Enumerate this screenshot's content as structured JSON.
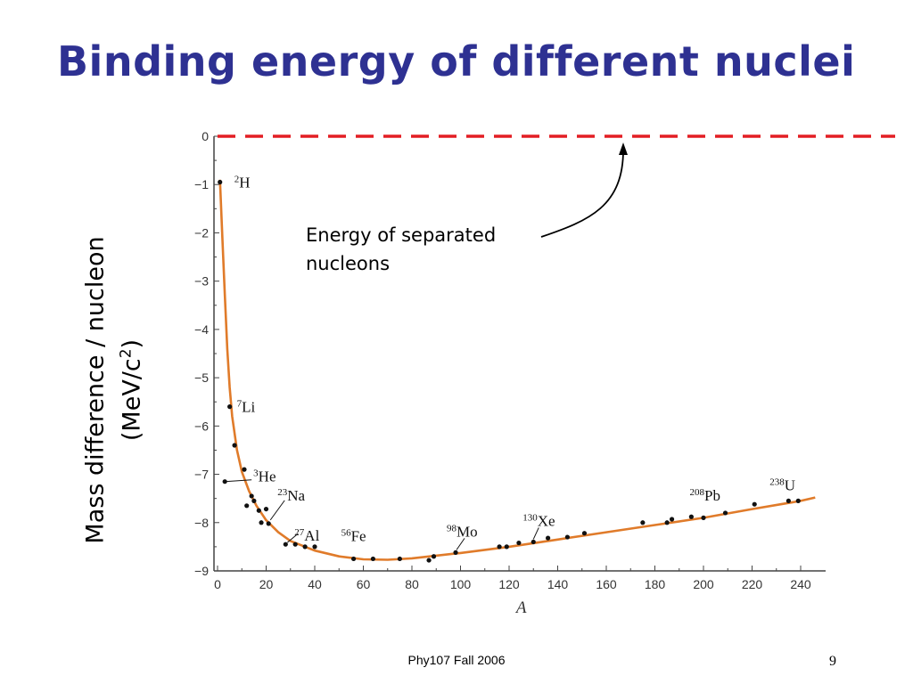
{
  "slide": {
    "title": "Binding energy of different nuclei",
    "ylabel_line1": "Mass difference / nucleon",
    "ylabel_line2_pre": "(MeV/c",
    "ylabel_line2_sup": "2",
    "ylabel_line2_post": ")",
    "footer": "Phy107 Fall 2006",
    "page_number": "9"
  },
  "chart_data": {
    "type": "scatter",
    "xlabel": "A",
    "xlim": [
      0,
      250
    ],
    "ylim": [
      -9,
      0
    ],
    "xticks": [
      0,
      20,
      40,
      60,
      80,
      100,
      120,
      140,
      160,
      180,
      200,
      220,
      240
    ],
    "yticks": [
      0,
      -1,
      -2,
      -3,
      -4,
      -5,
      -6,
      -7,
      -8,
      -9
    ],
    "xtick_labels": [
      "0",
      "20",
      "40",
      "60",
      "80",
      "100",
      "120",
      "140",
      "160",
      "180",
      "200",
      "220",
      "240"
    ],
    "ytick_labels": [
      "0",
      "−1",
      "−2",
      "−3",
      "−4",
      "−5",
      "−6",
      "−7",
      "−8",
      "−9"
    ],
    "reference_line": {
      "y": 0,
      "color": "#e31e24",
      "style": "dashed"
    },
    "annotation": {
      "text_line1": "Energy of separated",
      "text_line2": "nucleons"
    },
    "curve_color": "#e07b2a",
    "curve": [
      {
        "x": 1,
        "y": -0.9
      },
      {
        "x": 2,
        "y": -2.1
      },
      {
        "x": 3,
        "y": -3.3
      },
      {
        "x": 4,
        "y": -4.4
      },
      {
        "x": 5,
        "y": -5.2
      },
      {
        "x": 6,
        "y": -5.8
      },
      {
        "x": 8,
        "y": -6.5
      },
      {
        "x": 10,
        "y": -6.95
      },
      {
        "x": 13,
        "y": -7.35
      },
      {
        "x": 16,
        "y": -7.65
      },
      {
        "x": 20,
        "y": -7.95
      },
      {
        "x": 25,
        "y": -8.2
      },
      {
        "x": 30,
        "y": -8.38
      },
      {
        "x": 40,
        "y": -8.58
      },
      {
        "x": 50,
        "y": -8.7
      },
      {
        "x": 60,
        "y": -8.76
      },
      {
        "x": 70,
        "y": -8.77
      },
      {
        "x": 80,
        "y": -8.74
      },
      {
        "x": 100,
        "y": -8.63
      },
      {
        "x": 120,
        "y": -8.5
      },
      {
        "x": 140,
        "y": -8.35
      },
      {
        "x": 160,
        "y": -8.2
      },
      {
        "x": 180,
        "y": -8.05
      },
      {
        "x": 200,
        "y": -7.9
      },
      {
        "x": 220,
        "y": -7.72
      },
      {
        "x": 240,
        "y": -7.55
      },
      {
        "x": 246,
        "y": -7.48
      }
    ],
    "points": [
      {
        "x": 1,
        "y": -0.95
      },
      {
        "x": 5,
        "y": -5.6
      },
      {
        "x": 7,
        "y": -6.4
      },
      {
        "x": 11,
        "y": -6.9
      },
      {
        "x": 12,
        "y": -7.65
      },
      {
        "x": 14,
        "y": -7.45
      },
      {
        "x": 15,
        "y": -7.55
      },
      {
        "x": 17,
        "y": -7.75
      },
      {
        "x": 18,
        "y": -8.0
      },
      {
        "x": 20,
        "y": -7.72
      },
      {
        "x": 21,
        "y": -8.02
      },
      {
        "x": 28,
        "y": -8.45
      },
      {
        "x": 32,
        "y": -8.45
      },
      {
        "x": 36,
        "y": -8.5
      },
      {
        "x": 40,
        "y": -8.5
      },
      {
        "x": 56,
        "y": -8.75
      },
      {
        "x": 64,
        "y": -8.75
      },
      {
        "x": 75,
        "y": -8.75
      },
      {
        "x": 87,
        "y": -8.78
      },
      {
        "x": 89,
        "y": -8.7
      },
      {
        "x": 98,
        "y": -8.62
      },
      {
        "x": 116,
        "y": -8.5
      },
      {
        "x": 119,
        "y": -8.5
      },
      {
        "x": 124,
        "y": -8.42
      },
      {
        "x": 130,
        "y": -8.4
      },
      {
        "x": 136,
        "y": -8.32
      },
      {
        "x": 144,
        "y": -8.3
      },
      {
        "x": 151,
        "y": -8.22
      },
      {
        "x": 175,
        "y": -8.0
      },
      {
        "x": 185,
        "y": -8.0
      },
      {
        "x": 187,
        "y": -7.93
      },
      {
        "x": 195,
        "y": -7.88
      },
      {
        "x": 200,
        "y": -7.9
      },
      {
        "x": 209,
        "y": -7.8
      },
      {
        "x": 221,
        "y": -7.62
      },
      {
        "x": 235,
        "y": -7.55
      },
      {
        "x": 239,
        "y": -7.55
      },
      {
        "x": 3,
        "y": -7.15
      }
    ],
    "isotopes": [
      {
        "mass": "2",
        "symbol": "H",
        "x": 1,
        "y": -0.95
      },
      {
        "mass": "7",
        "symbol": "Li",
        "x": 5,
        "y": -5.6
      },
      {
        "mass": "3",
        "symbol": "He",
        "x": 3,
        "y": -7.15
      },
      {
        "mass": "23",
        "symbol": "Na",
        "x": 21,
        "y": -8.02
      },
      {
        "mass": "27",
        "symbol": "Al",
        "x": 28,
        "y": -8.45
      },
      {
        "mass": "56",
        "symbol": "Fe",
        "x": 56,
        "y": -8.75
      },
      {
        "mass": "98",
        "symbol": "Mo",
        "x": 98,
        "y": -8.62
      },
      {
        "mass": "130",
        "symbol": "Xe",
        "x": 130,
        "y": -8.4
      },
      {
        "mass": "208",
        "symbol": "Pb",
        "x": 209,
        "y": -7.8
      },
      {
        "mass": "238",
        "symbol": "U",
        "x": 239,
        "y": -7.55
      }
    ]
  }
}
